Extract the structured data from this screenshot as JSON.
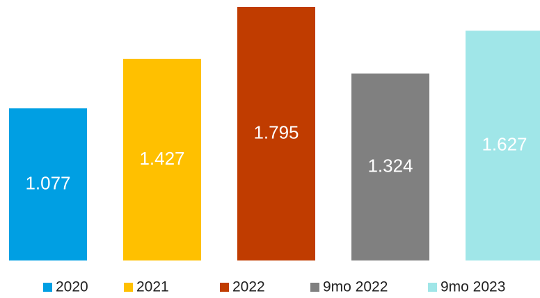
{
  "chart_data": {
    "type": "bar",
    "categories": [
      "2020",
      "2021",
      "2022",
      "9mo 2022",
      "9mo 2023"
    ],
    "values": [
      1.077,
      1.427,
      1.795,
      1.324,
      1.627
    ],
    "colors": [
      "#009fe3",
      "#ffc000",
      "#c03c00",
      "#808080",
      "#a0e6e8"
    ]
  }
}
